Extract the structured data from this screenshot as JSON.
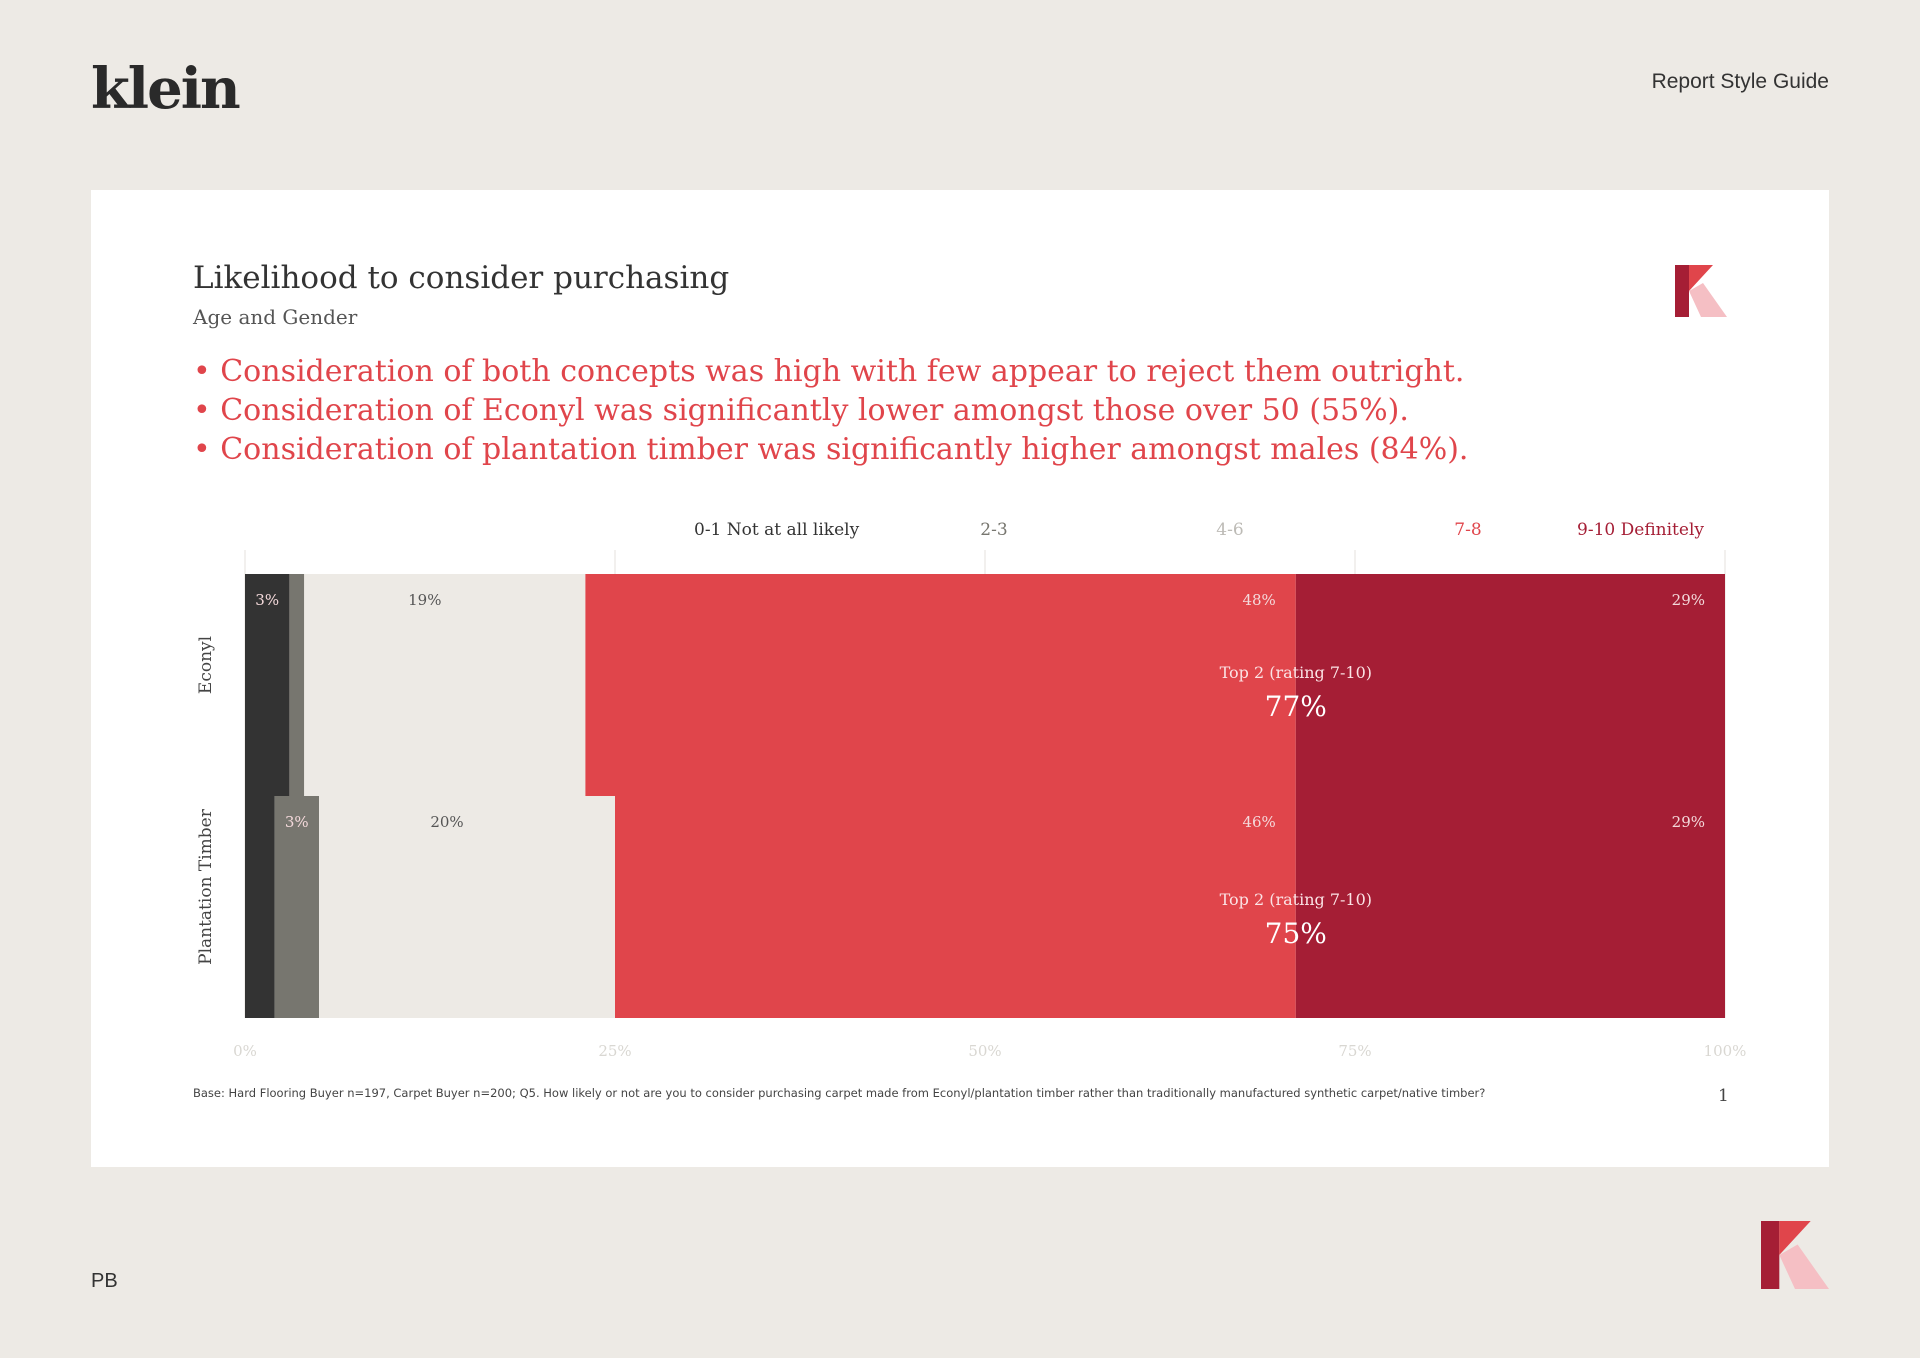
{
  "header": {
    "brand": "klein",
    "guide_title": "Report Style Guide"
  },
  "slide": {
    "title": "Likelihood to consider purchasing",
    "subtitle": "Age and Gender",
    "bullets": [
      "• Consideration of both concepts was high with few appear to reject them outright.",
      "• Consideration of Econyl was significantly lower amongst those over 50 (55%).",
      "• Consideration of plantation timber was significantly higher amongst males (84%)."
    ],
    "footnote": "Base: Hard Flooring Buyer n=197, Carpet Buyer n=200; Q5. How likely or not are you to consider purchasing carpet made from Econyl/plantation timber rather than traditionally manufactured synthetic carpet/native timber?",
    "page_number": "1"
  },
  "footer": {
    "initials": "PB"
  },
  "colors": {
    "background": "#EDEAE5",
    "card": "#FFFFFF",
    "bullet_text": "#E0454B",
    "logo_dark": "#A51E35",
    "logo_red": "#E0454B",
    "logo_pink": "#F5BFC4"
  },
  "chart_data": {
    "type": "bar",
    "orientation": "horizontal",
    "stacked": true,
    "categories": [
      "Econyl",
      "Plantation Timber"
    ],
    "series": [
      {
        "name": "0-1 Not at all likely",
        "values": [
          3,
          2
        ],
        "color": "#333333",
        "legend_color": "#333333"
      },
      {
        "name": "2-3",
        "values": [
          1,
          3
        ],
        "color": "#77766F",
        "legend_color": "#77766F"
      },
      {
        "name": "4-6",
        "values": [
          19,
          20
        ],
        "color": "#EDEAE5",
        "legend_color": "#BDBBB6"
      },
      {
        "name": "7-8",
        "values": [
          48,
          46
        ],
        "color": "#E0454B",
        "legend_color": "#E0454B"
      },
      {
        "name": "9-10 Definitely",
        "values": [
          29,
          29
        ],
        "color": "#A51E35",
        "legend_color": "#A51E35"
      }
    ],
    "data_labels": [
      [
        "3%",
        "",
        "19%",
        "48%",
        "29%"
      ],
      [
        "",
        "3%",
        "20%",
        "46%",
        "29%"
      ]
    ],
    "annotations": [
      {
        "label": "Top 2 (rating 7-10)",
        "value": "77%"
      },
      {
        "label": "Top 2 (rating 7-10)",
        "value": "75%"
      }
    ],
    "xticks": [
      "0%",
      "25%",
      "50%",
      "75%",
      "100%"
    ],
    "xlim": [
      0,
      100
    ],
    "legend_position": "top",
    "grid": true
  }
}
